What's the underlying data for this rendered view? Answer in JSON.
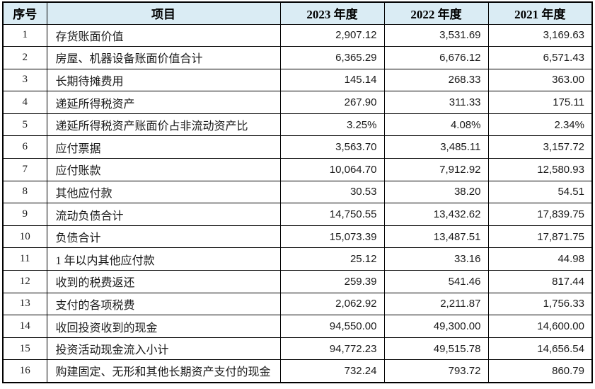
{
  "table": {
    "colors": {
      "header_bg": "#daecf4",
      "border": "#000000"
    },
    "headers": [
      "序号",
      "项目",
      "2023 年度",
      "2022 年度",
      "2021 年度"
    ],
    "rows": [
      {
        "no": "1",
        "item": "存货账面价值",
        "y2023": "2,907.12",
        "y2022": "3,531.69",
        "y2021": "3,169.63"
      },
      {
        "no": "2",
        "item": "房屋、机器设备账面价值合计",
        "y2023": "6,365.29",
        "y2022": "6,676.12",
        "y2021": "6,571.43"
      },
      {
        "no": "3",
        "item": "长期待摊费用",
        "y2023": "145.14",
        "y2022": "268.33",
        "y2021": "363.00"
      },
      {
        "no": "4",
        "item": "递延所得税资产",
        "y2023": "267.90",
        "y2022": "311.33",
        "y2021": "175.11"
      },
      {
        "no": "5",
        "item": "递延所得税资产账面价占非流动资产比",
        "y2023": "3.25%",
        "y2022": "4.08%",
        "y2021": "2.34%"
      },
      {
        "no": "6",
        "item": "应付票据",
        "y2023": "3,563.70",
        "y2022": "3,485.11",
        "y2021": "3,157.72"
      },
      {
        "no": "7",
        "item": "应付账款",
        "y2023": "10,064.70",
        "y2022": "7,912.92",
        "y2021": "12,580.93"
      },
      {
        "no": "8",
        "item": "其他应付款",
        "y2023": "30.53",
        "y2022": "38.20",
        "y2021": "54.51"
      },
      {
        "no": "9",
        "item": "流动负债合计",
        "y2023": "14,750.55",
        "y2022": "13,432.62",
        "y2021": "17,839.75"
      },
      {
        "no": "10",
        "item": "负债合计",
        "y2023": "15,073.39",
        "y2022": "13,487.51",
        "y2021": "17,871.75"
      },
      {
        "no": "11",
        "item": "1 年以内其他应付款",
        "y2023": "25.12",
        "y2022": "33.16",
        "y2021": "44.98"
      },
      {
        "no": "12",
        "item": "收到的税费返还",
        "y2023": "259.39",
        "y2022": "541.46",
        "y2021": "817.44"
      },
      {
        "no": "13",
        "item": "支付的各项税费",
        "y2023": "2,062.92",
        "y2022": "2,211.87",
        "y2021": "1,756.33"
      },
      {
        "no": "14",
        "item": "收回投资收到的现金",
        "y2023": "94,550.00",
        "y2022": "49,300.00",
        "y2021": "14,600.00"
      },
      {
        "no": "15",
        "item": "投资活动现金流入小计",
        "y2023": "94,772.23",
        "y2022": "49,515.78",
        "y2021": "14,656.54"
      },
      {
        "no": "16",
        "item": "购建固定、无形和其他长期资产支付的现金",
        "y2023": "732.24",
        "y2022": "793.72",
        "y2021": "860.79"
      }
    ]
  }
}
